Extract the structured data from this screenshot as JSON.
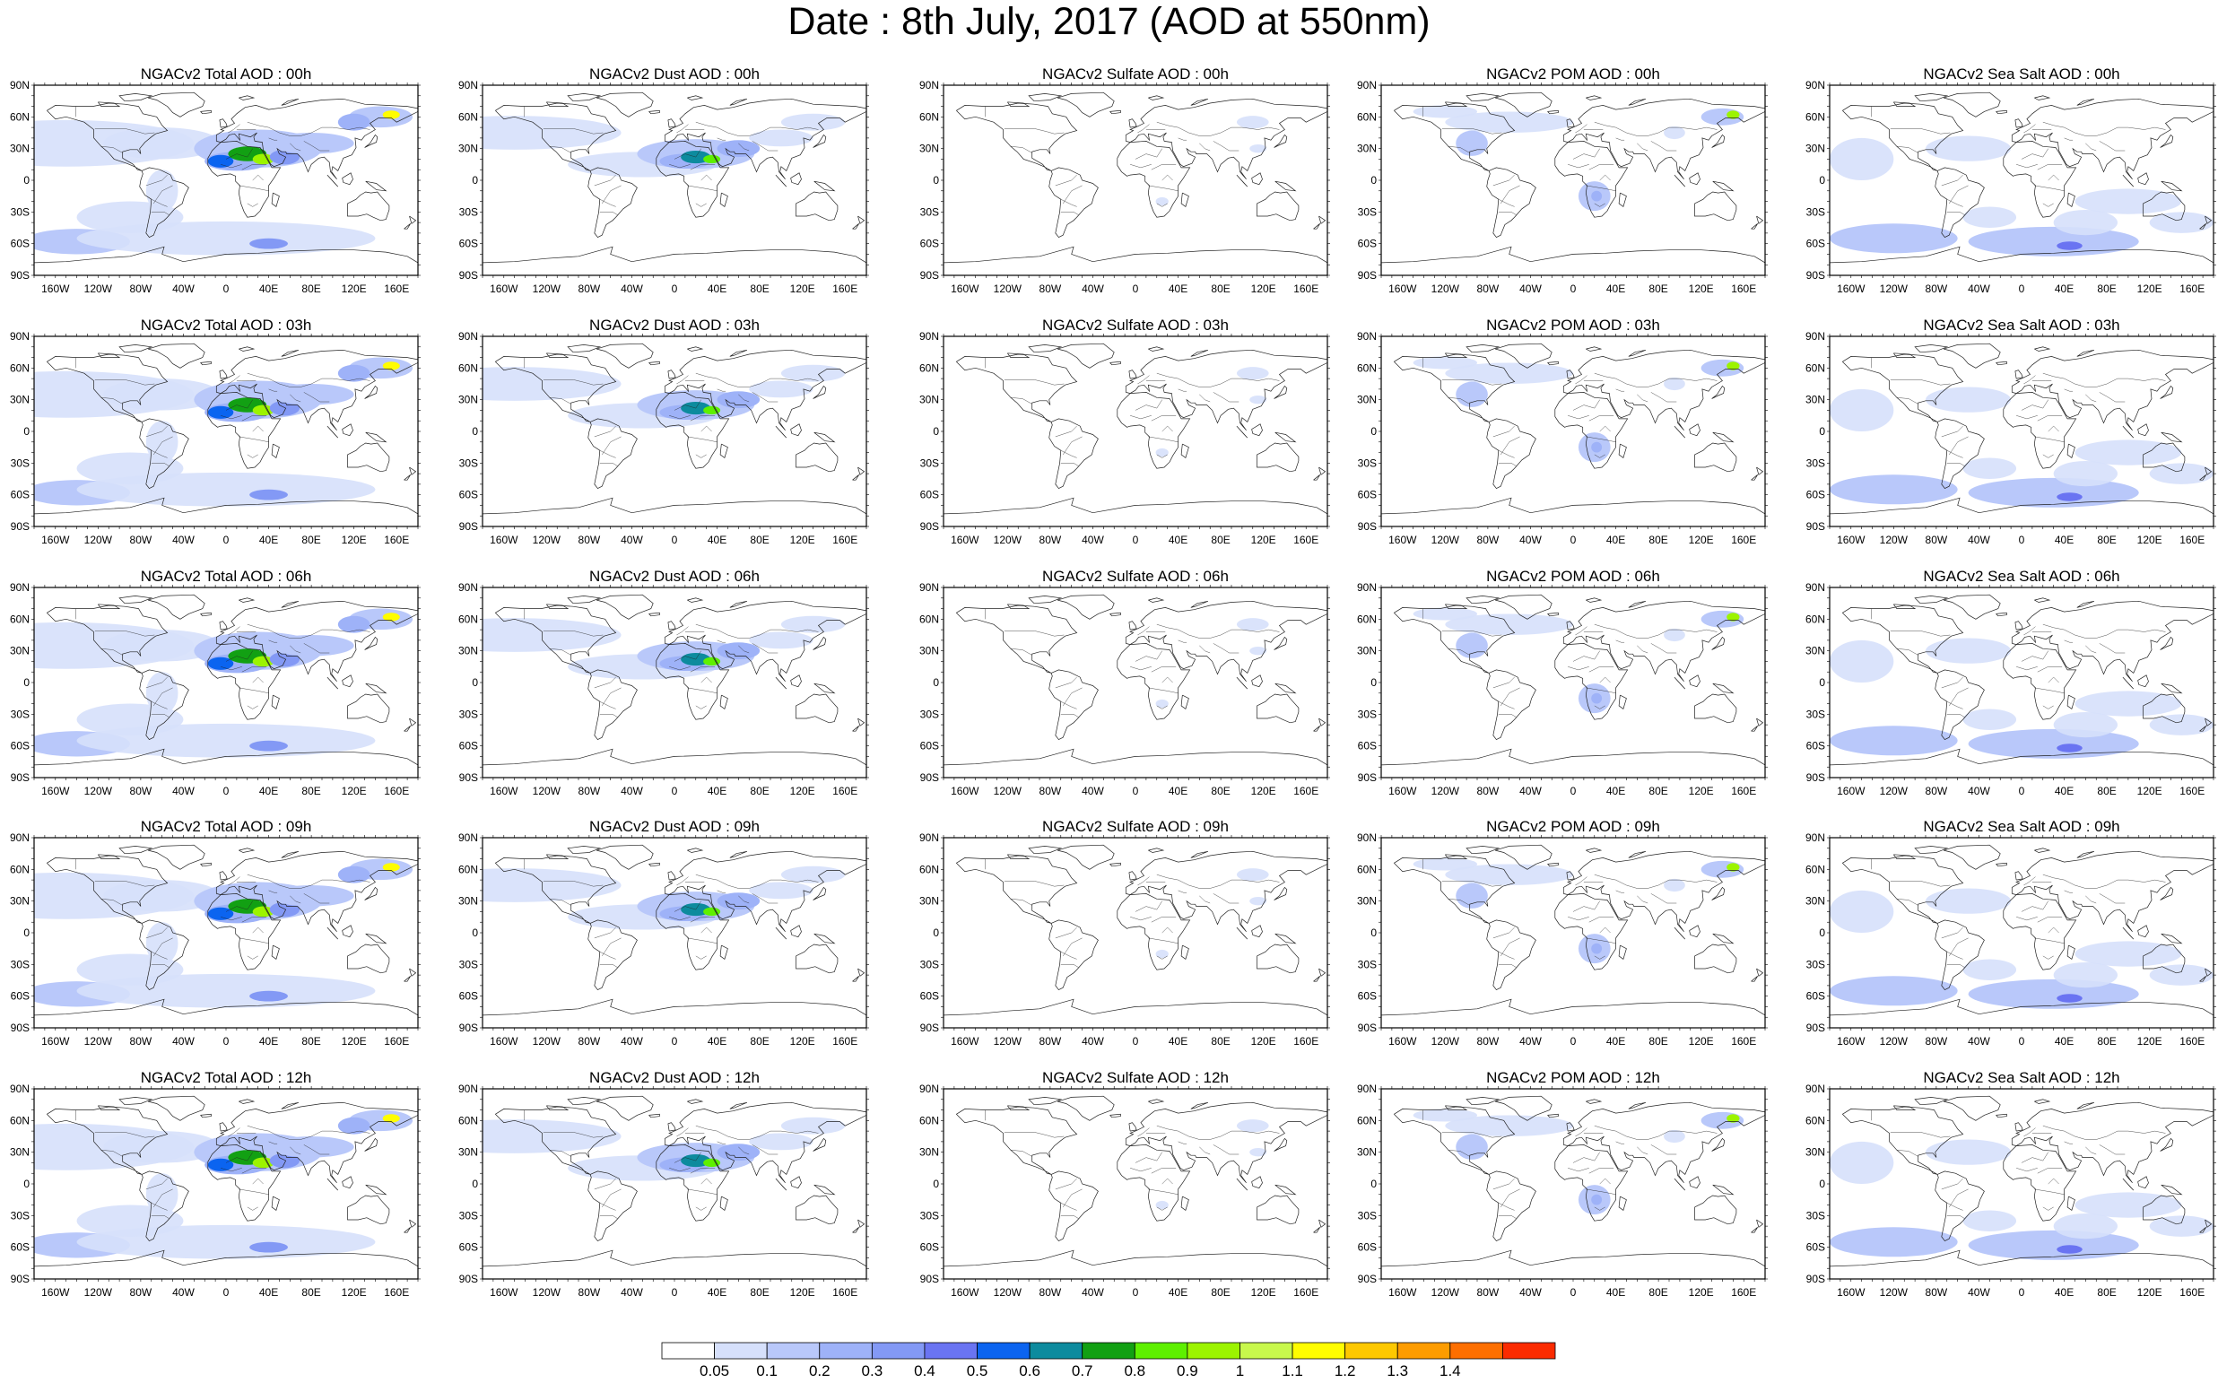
{
  "title": "Date : 8th July, 2017 (AOD at 550nm)",
  "latitude_labels": [
    "90N",
    "60N",
    "30N",
    "0",
    "30S",
    "60S",
    "90S"
  ],
  "longitude_labels": [
    "160W",
    "120W",
    "80W",
    "40W",
    "0",
    "40E",
    "80E",
    "120E",
    "160E"
  ],
  "columns": [
    {
      "key": "total",
      "base_color": "#7f97f5"
    },
    {
      "key": "dust",
      "base_color": "#8aa2f7"
    },
    {
      "key": "sulfate",
      "base_color": "#a9bbf9"
    },
    {
      "key": "pom",
      "base_color": "#8aa2f7"
    },
    {
      "key": "seasalt",
      "base_color": "#8aa2f7"
    }
  ],
  "panels": [
    {
      "title": "NGACv2 Total AOD : 00h"
    },
    {
      "title": "NGACv2 Dust AOD : 00h"
    },
    {
      "title": "NGACv2 Sulfate AOD : 00h"
    },
    {
      "title": "NGACv2 POM AOD : 00h"
    },
    {
      "title": "NGACv2 Sea Salt AOD : 00h"
    },
    {
      "title": "NGACv2 Total AOD : 03h"
    },
    {
      "title": "NGACv2 Dust AOD : 03h"
    },
    {
      "title": "NGACv2 Sulfate AOD : 03h"
    },
    {
      "title": "NGACv2 POM AOD : 03h"
    },
    {
      "title": "NGACv2 Sea Salt AOD : 03h"
    },
    {
      "title": "NGACv2 Total AOD : 06h"
    },
    {
      "title": "NGACv2 Dust AOD : 06h"
    },
    {
      "title": "NGACv2 Sulfate AOD : 06h"
    },
    {
      "title": "NGACv2 POM AOD : 06h"
    },
    {
      "title": "NGACv2 Sea Salt AOD : 06h"
    },
    {
      "title": "NGACv2 Total AOD : 09h"
    },
    {
      "title": "NGACv2 Dust AOD : 09h"
    },
    {
      "title": "NGACv2 Sulfate AOD : 09h"
    },
    {
      "title": "NGACv2 POM AOD : 09h"
    },
    {
      "title": "NGACv2 Sea Salt  AOD : 09h"
    },
    {
      "title": "NGACv2 Total AOD  : 12h"
    },
    {
      "title": "NGACv2 Dust AOD : 12h"
    },
    {
      "title": "NGACv2 Sulfate AOD : 12h"
    },
    {
      "title": "NGACv2 POM  AOD : 12h"
    },
    {
      "title": "NGACv2 Sea Salt AOD : 12h"
    }
  ],
  "colorbar": {
    "colors": [
      "#ffffff",
      "#d6e0fb",
      "#b9c8fa",
      "#9eb2f8",
      "#8399f5",
      "#6a74f2",
      "#0b64f0",
      "#0d8b9e",
      "#12a013",
      "#5ef000",
      "#9cf400",
      "#c8f84c",
      "#fffd00",
      "#fdc800",
      "#fd9c00",
      "#fd6f00",
      "#fb2b00"
    ],
    "labels": [
      "0.05",
      "0.1",
      "0.2",
      "0.3",
      "0.4",
      "0.5",
      "0.6",
      "0.7",
      "0.8",
      "0.9",
      "1",
      "1.1",
      "1.2",
      "1.3",
      "1.4"
    ]
  }
}
